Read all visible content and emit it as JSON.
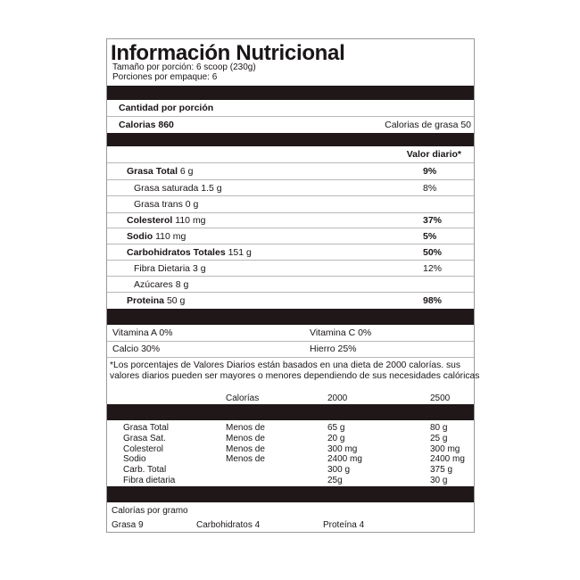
{
  "title": "Información Nutricional",
  "serving_size": "Tamaño por porción: 6 scoop (230g)",
  "servings_per_container": "Porciones por empaque: 6",
  "amount_per_serving": "Cantidad por porción",
  "calories": "Calorias 860",
  "calories_from_fat": "Calorias de grasa 50",
  "daily_value_header": "Valor diario*",
  "nutrients": [
    {
      "name": "Grasa Total",
      "amount": "6 g",
      "dv": "9%"
    },
    {
      "name": "Grasa saturada",
      "amount": "1.5 g",
      "dv": "8%"
    },
    {
      "name": "Grasa trans",
      "amount": "0 g",
      "dv": ""
    },
    {
      "name": "Colesterol",
      "amount": "110 mg",
      "dv": "37%"
    },
    {
      "name": "Sodio",
      "amount": "110 mg",
      "dv": "5%"
    },
    {
      "name": "Carbohidratos Totales",
      "amount": "151 g",
      "dv": "50%"
    },
    {
      "name": "Fibra Dietaria",
      "amount": "3 g",
      "dv": "12%"
    },
    {
      "name": "Azúcares",
      "amount": "8 g",
      "dv": ""
    },
    {
      "name": "Proteina",
      "amount": "50 g",
      "dv": "98%"
    }
  ],
  "vitamins": [
    [
      "Vitamina A 0%",
      "Vitamina C 0%"
    ],
    [
      "Calcio 30%",
      "Hierro 25%"
    ]
  ],
  "footnote": [
    "*Los porcentajes de Valores Diarios están basados en una dieta de 2000 calorías. sus",
    "valores diarios pueden ser mayores o menores dependiendo de sus necesidades calóricas"
  ],
  "ref_table": {
    "headers": [
      "Calorías",
      "2000",
      "2500"
    ],
    "rows": [
      [
        "Grasa Total",
        "Menos de",
        "65 g",
        "80 g"
      ],
      [
        "Grasa Sat.",
        "Menos de",
        "20 g",
        "25 g"
      ],
      [
        "Colesterol",
        "Menos de",
        "300 mg",
        "300 mg"
      ],
      [
        "Sodio",
        "Menos de",
        "2400 mg",
        "2400 mg"
      ],
      [
        "Carb. Total",
        "",
        "300 g",
        "375 g"
      ],
      [
        "Fibra dietaria",
        "",
        "25g",
        "30 g"
      ]
    ]
  },
  "calories_per_gram": {
    "label": "Calorías por gramo",
    "items": [
      "Grasa 9",
      "Carbohidratos 4",
      "Proteína 4"
    ]
  }
}
